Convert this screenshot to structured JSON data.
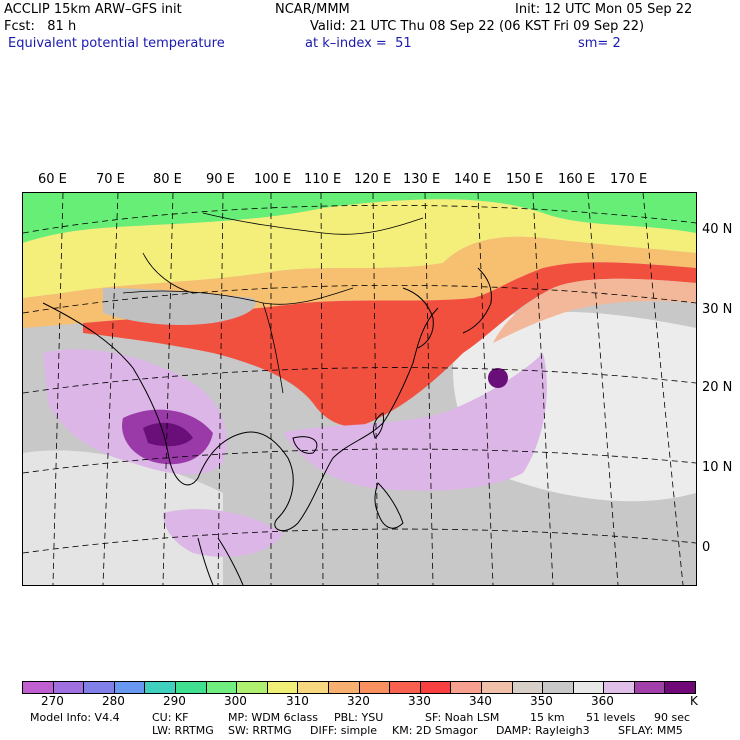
{
  "header": {
    "model": "ACCLIP 15km ARW–GFS init",
    "org": "NCAR/MMM",
    "init": "Init: 12 UTC Mon 05 Sep 22",
    "fcst": "Fcst:   81 h",
    "valid": "Valid: 21 UTC Thu 08 Sep 22 (06 KST Fri 09 Sep 22)",
    "field": "Equivalent potential temperature",
    "level": "at k–index =  51",
    "smooth": "sm= 2"
  },
  "map": {
    "lon_labels": [
      "60 E",
      "70 E",
      "80 E",
      "90 E",
      "100 E",
      "110 E",
      "120 E",
      "130 E",
      "140 E",
      "150 E",
      "160 E",
      "170 E"
    ],
    "lat_labels": [
      "40 N",
      "30 N",
      "20 N",
      "10 N",
      "0"
    ],
    "colors": {
      "green": "#66ee77",
      "yellow": "#f4ef7a",
      "lightorange": "#f7c070",
      "orange": "#f79a55",
      "red": "#f2503f",
      "peach": "#f3b89a",
      "gray": "#c8c8c8",
      "lightgray": "#ececec",
      "lavender": "#dbb6e6",
      "purple": "#9a3aa8",
      "darkpurple": "#6a0f7a"
    }
  },
  "colorbar": {
    "colors": [
      "#c060d0",
      "#a070e0",
      "#8080e8",
      "#6898f0",
      "#40d0c0",
      "#40e090",
      "#70ee80",
      "#b0f070",
      "#f0f078",
      "#f8d880",
      "#f8b070",
      "#f89060",
      "#f86050",
      "#f84040",
      "#f8a090",
      "#f0c0a8",
      "#d8d0c8",
      "#c8c8c8",
      "#e8e8e8",
      "#e0c0e8",
      "#a040a8",
      "#700878"
    ],
    "labels": [
      "270",
      "280",
      "290",
      "300",
      "310",
      "320",
      "330",
      "340",
      "350",
      "360",
      "K"
    ]
  },
  "footer": {
    "line1": [
      "Model Info: V4.4",
      "CU: KF",
      "MP: WDM 6class",
      "PBL: YSU",
      "SF: Noah LSM",
      "15 km",
      "51 levels",
      "90 sec"
    ],
    "line2": [
      "LW: RRTMG",
      "SW: RRTMG",
      "DIFF: simple",
      "KM: 2D Smagor",
      "DAMP: Rayleigh3",
      "SFLAY: MM5"
    ]
  }
}
